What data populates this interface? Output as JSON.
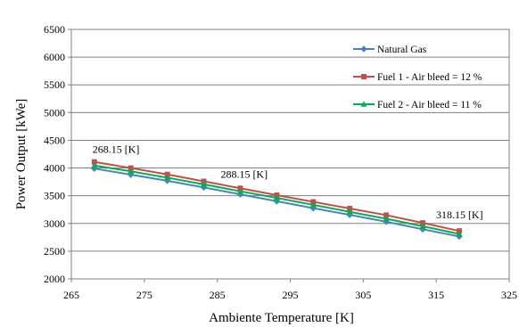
{
  "chart_data": {
    "type": "line",
    "xlabel": "Ambiente Temperature [K]",
    "ylabel": "Power Output  [kWe]",
    "xlim": [
      265,
      325
    ],
    "ylim": [
      2000,
      6500
    ],
    "xticks": [
      265,
      275,
      285,
      295,
      305,
      315,
      325
    ],
    "yticks": [
      2000,
      2500,
      3000,
      3500,
      4000,
      4500,
      5000,
      5500,
      6000,
      6500
    ],
    "grid": "horizontal",
    "legend_position": "top-right",
    "x": [
      268.15,
      273.15,
      278.15,
      283.15,
      288.15,
      293.15,
      298.15,
      303.15,
      308.15,
      313.15,
      318.15
    ],
    "series": [
      {
        "name": "Natural Gas",
        "color": "#4f81bd",
        "marker": "diamond",
        "values": [
          3990,
          3880,
          3770,
          3650,
          3525,
          3400,
          3275,
          3155,
          3030,
          2895,
          2765
        ]
      },
      {
        "name": "Fuel 1 - Air bleed = 12 %",
        "color": "#c0504d",
        "marker": "square",
        "values": [
          4110,
          4000,
          3885,
          3760,
          3635,
          3510,
          3390,
          3270,
          3150,
          3010,
          2865
        ]
      },
      {
        "name": "Fuel 2 - Air bleed = 11 %",
        "color": "#00b050",
        "marker": "triangle",
        "values": [
          4045,
          3940,
          3825,
          3705,
          3580,
          3460,
          3335,
          3210,
          3085,
          2950,
          2810
        ]
      }
    ],
    "annotations": [
      {
        "text": "268.15 [K]",
        "x": 268.15,
        "y": 4110
      },
      {
        "text": "288.15 [K]",
        "x": 288.15,
        "y": 3635
      },
      {
        "text": "318.15 [K]",
        "x": 318.15,
        "y": 2865
      }
    ]
  }
}
